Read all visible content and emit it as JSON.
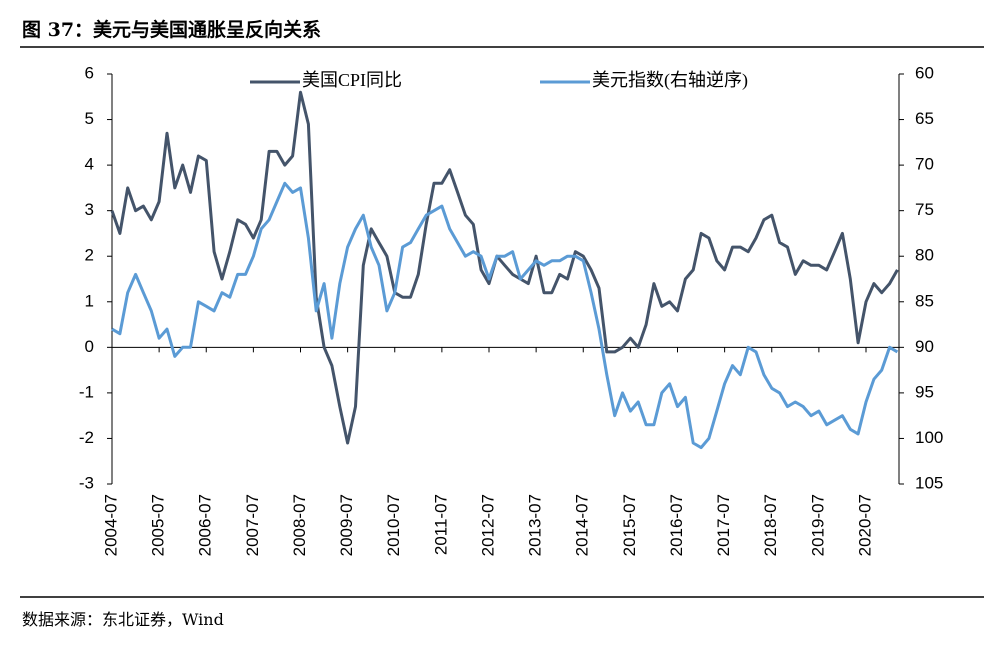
{
  "chart_data": {
    "type": "line",
    "title": "图 37：美元与美国通胀呈反向关系",
    "source": "数据来源：东北证券，Wind",
    "x": [
      "2004-07",
      "2004-09",
      "2004-11",
      "2005-01",
      "2005-03",
      "2005-05",
      "2005-07",
      "2005-09",
      "2005-11",
      "2006-01",
      "2006-03",
      "2006-05",
      "2006-07",
      "2006-09",
      "2006-11",
      "2007-01",
      "2007-03",
      "2007-05",
      "2007-07",
      "2007-09",
      "2007-11",
      "2008-01",
      "2008-03",
      "2008-05",
      "2008-07",
      "2008-09",
      "2008-11",
      "2009-01",
      "2009-03",
      "2009-05",
      "2009-07",
      "2009-09",
      "2009-11",
      "2010-01",
      "2010-03",
      "2010-05",
      "2010-07",
      "2010-09",
      "2010-11",
      "2011-01",
      "2011-03",
      "2011-05",
      "2011-07",
      "2011-09",
      "2011-11",
      "2012-01",
      "2012-03",
      "2012-05",
      "2012-07",
      "2012-09",
      "2012-11",
      "2013-01",
      "2013-03",
      "2013-05",
      "2013-07",
      "2013-09",
      "2013-11",
      "2014-01",
      "2014-03",
      "2014-05",
      "2014-07",
      "2014-09",
      "2014-11",
      "2015-01",
      "2015-03",
      "2015-05",
      "2015-07",
      "2015-09",
      "2015-11",
      "2016-01",
      "2016-03",
      "2016-05",
      "2016-07",
      "2016-09",
      "2016-11",
      "2017-01",
      "2017-03",
      "2017-05",
      "2017-07",
      "2017-09",
      "2017-11",
      "2018-01",
      "2018-03",
      "2018-05",
      "2018-07",
      "2018-09",
      "2018-11",
      "2019-01",
      "2019-03",
      "2019-05",
      "2019-07",
      "2019-09",
      "2019-11",
      "2020-01",
      "2020-03",
      "2020-05",
      "2020-07",
      "2020-09",
      "2020-11",
      "2021-01",
      "2021-03"
    ],
    "series": [
      {
        "name": "美国CPI同比",
        "color": "#44546a",
        "axis": "y",
        "values": [
          3.0,
          2.5,
          3.5,
          3.0,
          3.1,
          2.8,
          3.2,
          4.7,
          3.5,
          4.0,
          3.4,
          4.2,
          4.1,
          2.1,
          1.5,
          2.1,
          2.8,
          2.7,
          2.4,
          2.8,
          4.3,
          4.3,
          4.0,
          4.2,
          5.6,
          4.9,
          1.1,
          0.0,
          -0.4,
          -1.3,
          -2.1,
          -1.3,
          1.8,
          2.6,
          2.3,
          2.0,
          1.2,
          1.1,
          1.1,
          1.6,
          2.7,
          3.6,
          3.6,
          3.9,
          3.4,
          2.9,
          2.7,
          1.7,
          1.4,
          2.0,
          1.8,
          1.6,
          1.5,
          1.4,
          2.0,
          1.2,
          1.2,
          1.6,
          1.5,
          2.1,
          2.0,
          1.7,
          1.3,
          -0.1,
          -0.1,
          0.0,
          0.2,
          0.0,
          0.5,
          1.4,
          0.9,
          1.0,
          0.8,
          1.5,
          1.7,
          2.5,
          2.4,
          1.9,
          1.7,
          2.2,
          2.2,
          2.1,
          2.4,
          2.8,
          2.9,
          2.3,
          2.2,
          1.6,
          1.9,
          1.8,
          1.8,
          1.7,
          2.1,
          2.5,
          1.5,
          0.1,
          1.0,
          1.4,
          1.2,
          1.4,
          1.7
        ]
      },
      {
        "name": "美元指数(右轴逆序)",
        "color": "#5b9bd5",
        "axis": "y2",
        "values": [
          88,
          88.5,
          84,
          82,
          84,
          86,
          89,
          88,
          91,
          90,
          90,
          85,
          85.5,
          86,
          84,
          84.5,
          82,
          82,
          80,
          77,
          76,
          74,
          72,
          73,
          72.5,
          78,
          86,
          83,
          89,
          83,
          79,
          77,
          75.5,
          79,
          81,
          86,
          84,
          79,
          78.5,
          77,
          75.5,
          75,
          74.5,
          77,
          78.5,
          80,
          79.5,
          80,
          82.5,
          80,
          80,
          79.5,
          82.5,
          81.5,
          80.5,
          81,
          80.5,
          80.5,
          80,
          80,
          80.5,
          84,
          88,
          93,
          97.5,
          95,
          97,
          96,
          98.5,
          98.5,
          95,
          94,
          96.5,
          95.5,
          100.5,
          101,
          100,
          97,
          94,
          92,
          93,
          90,
          90.5,
          93,
          94.5,
          95,
          96.5,
          96,
          96.5,
          97.5,
          97,
          98.5,
          98,
          97.5,
          99,
          99.5,
          96,
          93.5,
          92.5,
          90,
          90.5
        ]
      }
    ],
    "xticks": [
      "2004-07",
      "2005-07",
      "2006-07",
      "2007-07",
      "2008-07",
      "2009-07",
      "2010-07",
      "2011-07",
      "2012-07",
      "2013-07",
      "2014-07",
      "2015-07",
      "2016-07",
      "2017-07",
      "2018-07",
      "2019-07",
      "2020-07"
    ],
    "ylim": [
      -3,
      6
    ],
    "yticks": [
      -3,
      -2,
      -1,
      0,
      1,
      2,
      3,
      4,
      5,
      6
    ],
    "y2lim": [
      60,
      105
    ],
    "y2ticks": [
      60,
      65,
      70,
      75,
      80,
      85,
      90,
      95,
      100,
      105
    ],
    "y2_inverted": true,
    "legend": "top"
  }
}
